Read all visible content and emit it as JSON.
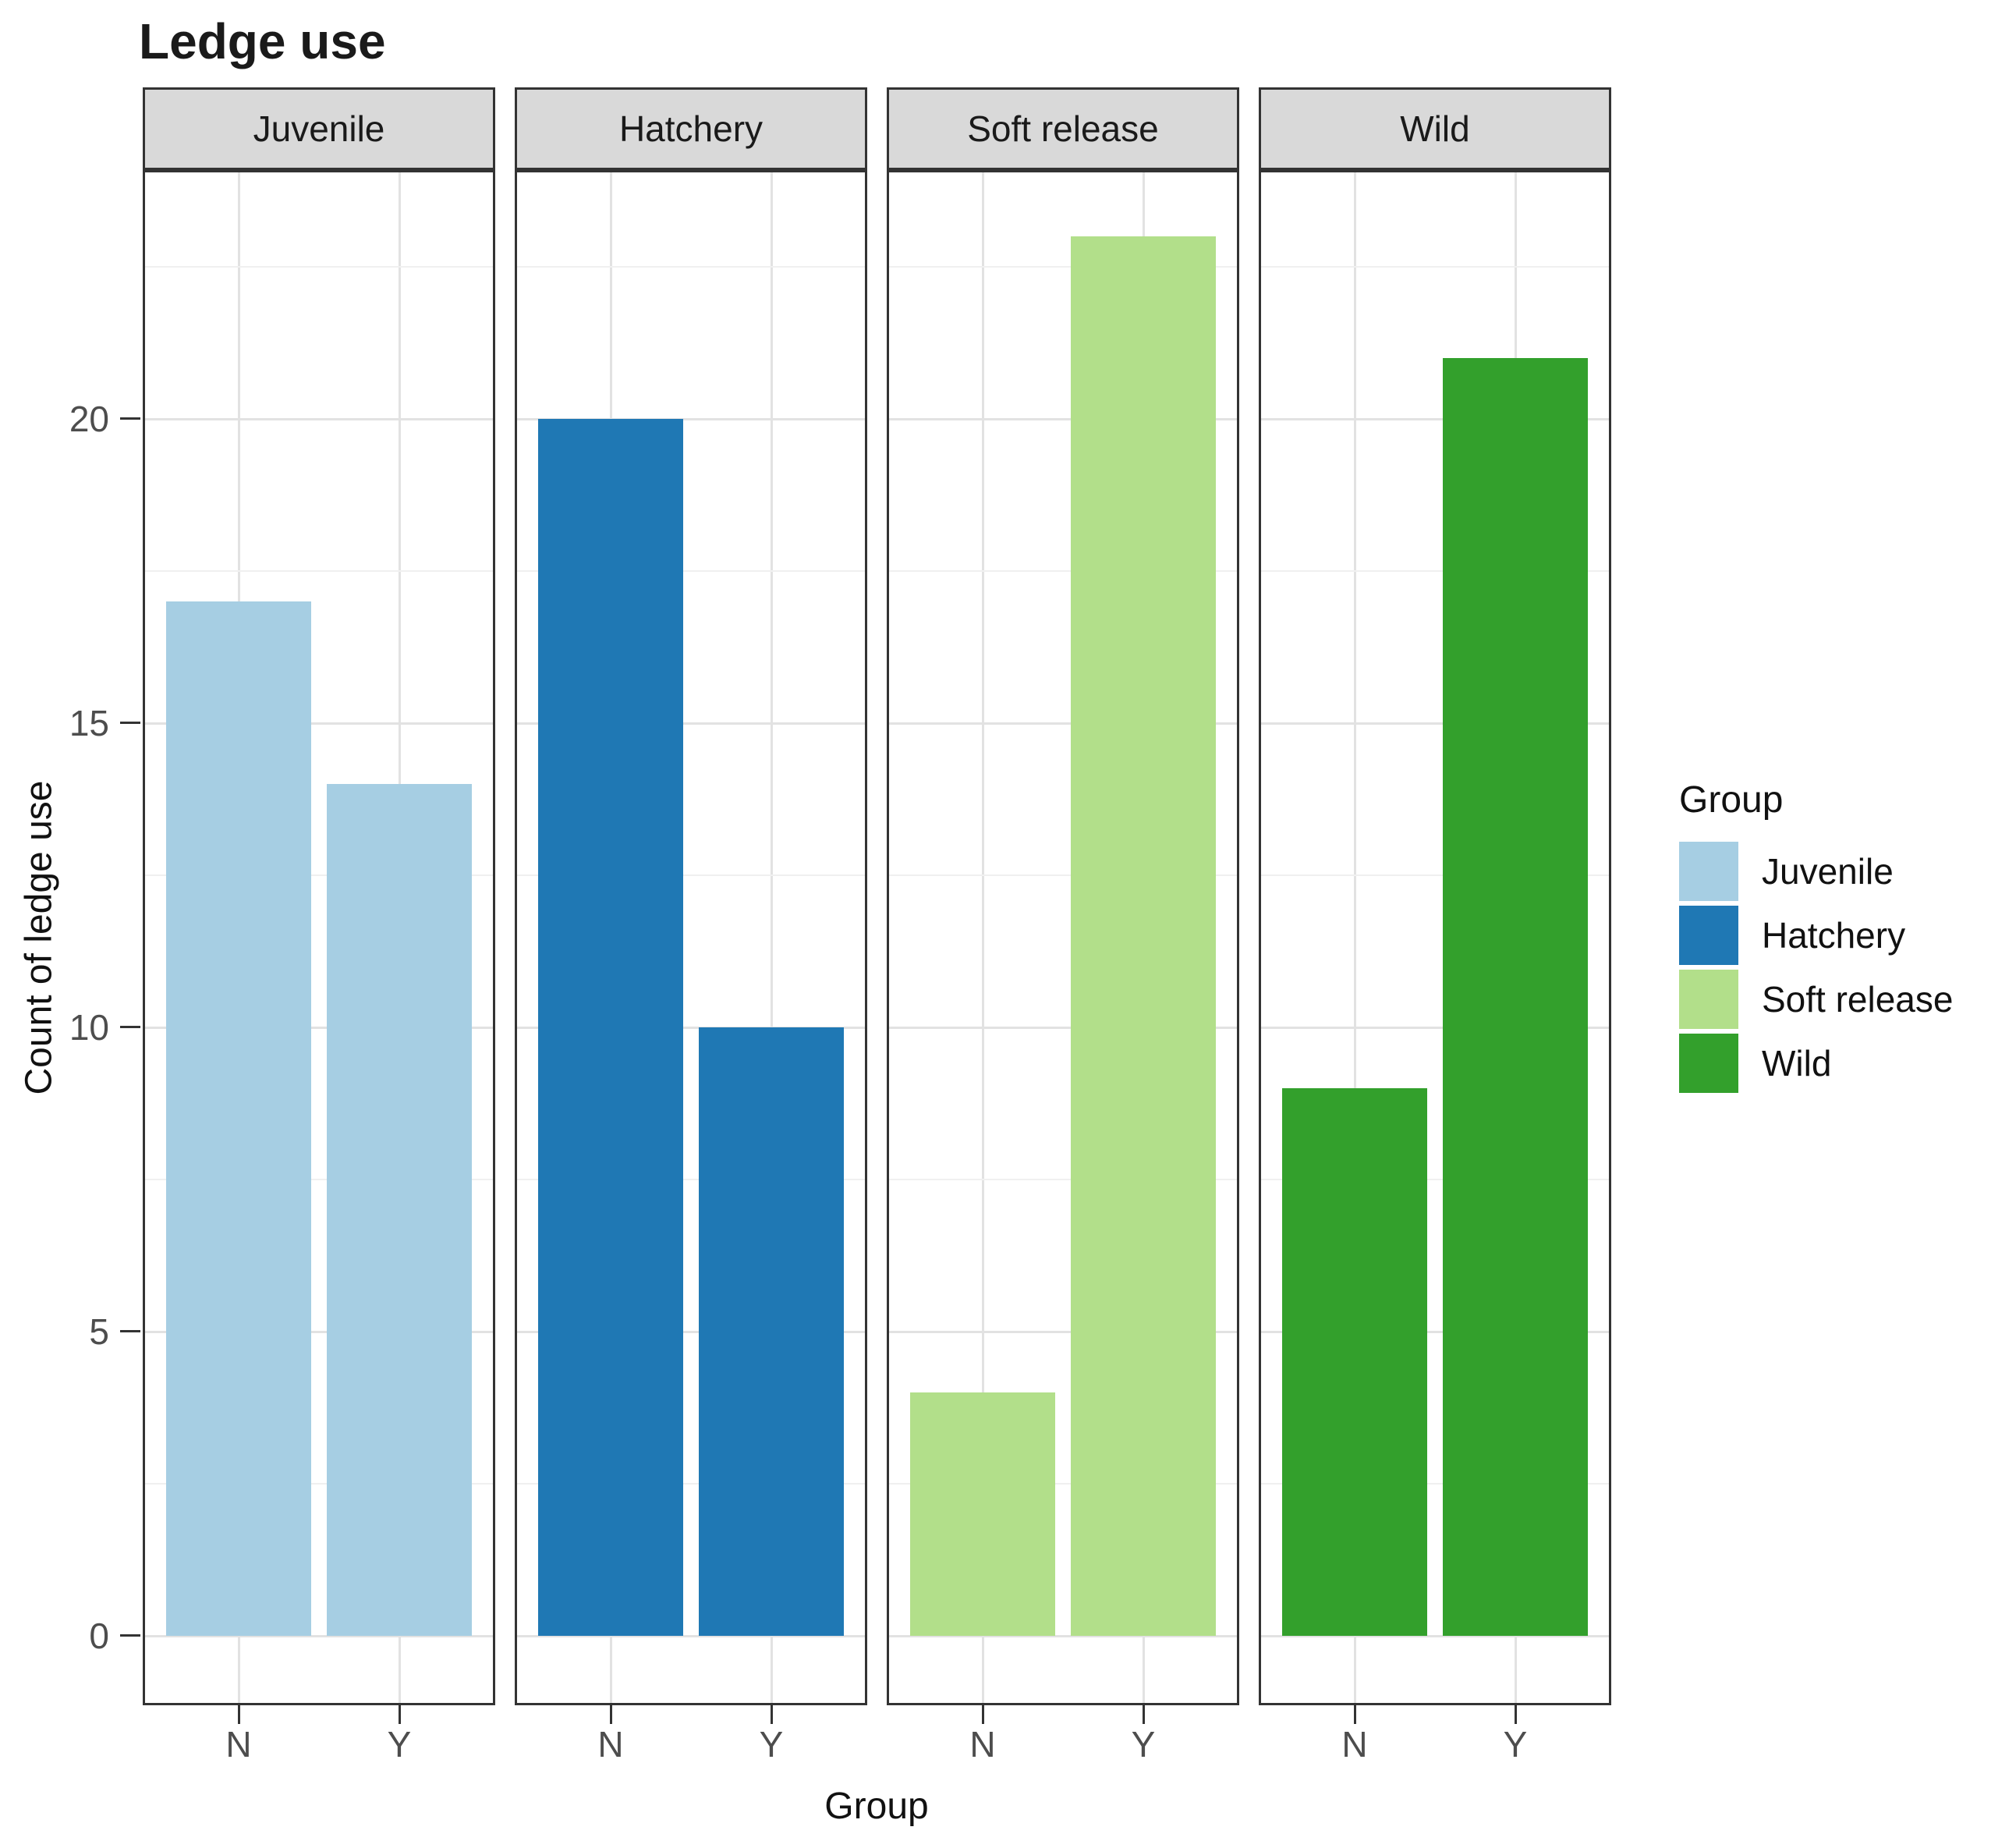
{
  "title": "Ledge use",
  "axes": {
    "x_label": "Group",
    "y_label": "Count of ledge use",
    "y_tick_labels": [
      "0",
      "5",
      "10",
      "15",
      "20"
    ],
    "x_tick_labels": [
      "N",
      "Y"
    ]
  },
  "legend": {
    "title": "Group",
    "entries": [
      {
        "label": "Juvenile",
        "color": "#A6CEE3"
      },
      {
        "label": "Hatchery",
        "color": "#1F78B4"
      },
      {
        "label": "Soft release",
        "color": "#B2DF8A"
      },
      {
        "label": "Wild",
        "color": "#33A02C"
      }
    ]
  },
  "chart_data": {
    "type": "bar",
    "title": "Ledge use",
    "xlabel": "Group",
    "ylabel": "Count of ledge use",
    "categories": [
      "N",
      "Y"
    ],
    "ylim": [
      0,
      24
    ],
    "y_major_gridlines": [
      0,
      5,
      10,
      15,
      20
    ],
    "y_minor_gridlines": [
      2.5,
      7.5,
      12.5,
      17.5,
      22.5
    ],
    "legend_position": "right",
    "grid": "on",
    "facets": [
      {
        "label": "Juvenile",
        "color": "#A6CEE3",
        "series": {
          "N": 17,
          "Y": 14
        }
      },
      {
        "label": "Hatchery",
        "color": "#1F78B4",
        "series": {
          "N": 20,
          "Y": 10
        }
      },
      {
        "label": "Soft release",
        "color": "#B2DF8A",
        "series": {
          "N": 4,
          "Y": 23
        }
      },
      {
        "label": "Wild",
        "color": "#33A02C",
        "series": {
          "N": 9,
          "Y": 21
        }
      }
    ]
  },
  "style_colors": {
    "strip_bg": "#D9D9D9",
    "panel_border": "#333333",
    "grid_major": "#E2E2E2",
    "grid_minor": "#F0F0F0",
    "axis_text": "#4D4D4D",
    "tick_mark": "#333333"
  }
}
